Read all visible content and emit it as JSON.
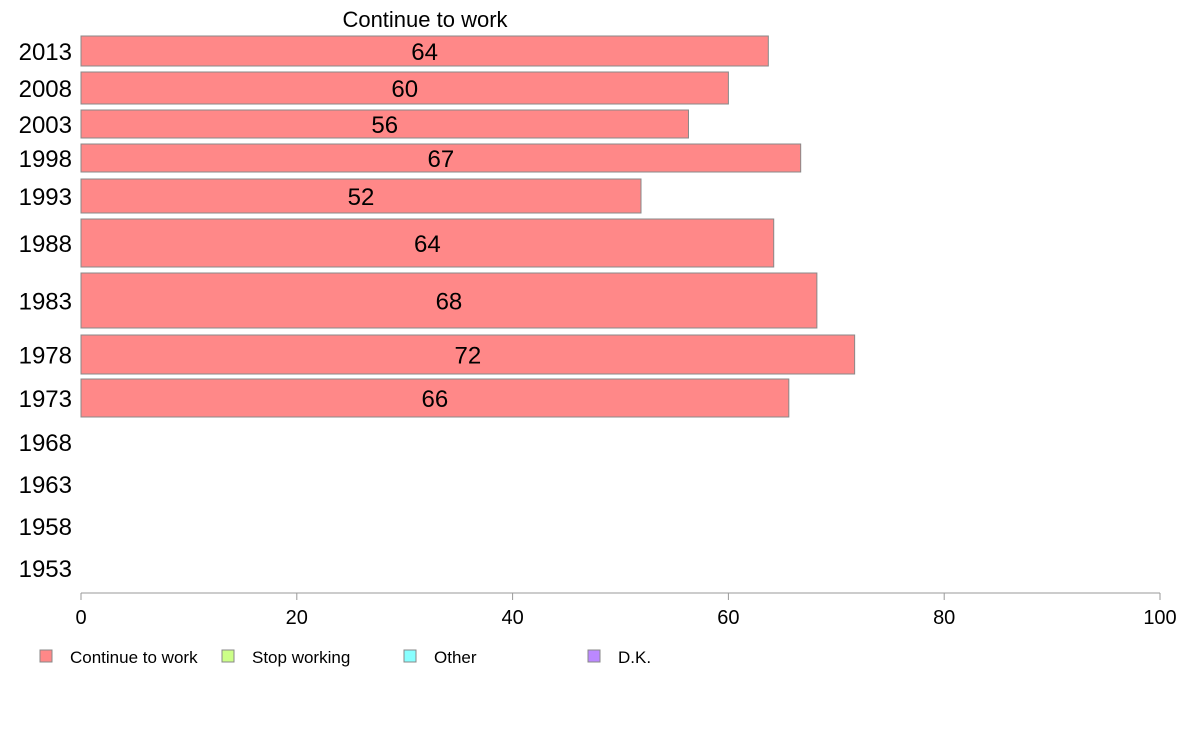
{
  "chart_data": {
    "type": "bar",
    "orientation": "horizontal",
    "title": "Continue to work",
    "categories": [
      "2013",
      "2008",
      "2003",
      "1998",
      "1993",
      "1988",
      "1983",
      "1978",
      "1973",
      "1968",
      "1963",
      "1958",
      "1953"
    ],
    "series": [
      {
        "name": "Continue to work",
        "color": "#ff8888",
        "values": [
          64,
          60,
          56,
          67,
          52,
          64,
          68,
          72,
          66,
          null,
          null,
          null,
          null
        ],
        "bar_value_precise": [
          63.7,
          60.0,
          56.3,
          66.7,
          51.9,
          64.2,
          68.2,
          71.7,
          65.6,
          null,
          null,
          null,
          null
        ]
      }
    ],
    "xlim": [
      0,
      100
    ],
    "xticks": [
      0,
      20,
      40,
      60,
      80,
      100
    ],
    "xlabel": "",
    "ylabel": "",
    "grid": false,
    "legend": {
      "position": "bottom-left",
      "items": [
        {
          "label": "Continue to work",
          "color": "#ff8888"
        },
        {
          "label": "Stop working",
          "color": "#ccff88"
        },
        {
          "label": "Other",
          "color": "#88ffff"
        },
        {
          "label": "D.K.",
          "color": "#bb88ff"
        }
      ]
    },
    "bar_border_color": "#888888",
    "axis_color": "#999999"
  }
}
